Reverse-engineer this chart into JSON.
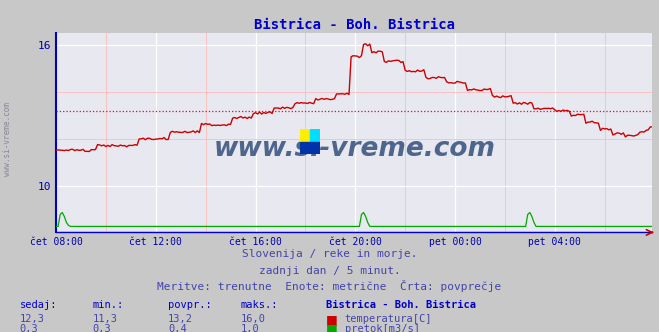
{
  "title": "Bistrica - Boh. Bistrica",
  "title_color": "#0000cc",
  "bg_color": "#c8c8c8",
  "plot_bg_color": "#e8e8f0",
  "grid_color_major": "#ffffff",
  "grid_color_minor": "#ffbbbb",
  "xlabel_color": "#0000aa",
  "ylabel_color": "#0000aa",
  "ylim": [
    8.0,
    16.5
  ],
  "yticks": [
    10,
    16
  ],
  "xlim": [
    0,
    287
  ],
  "xtick_labels": [
    "čet 08:00",
    "čet 12:00",
    "čet 16:00",
    "čet 20:00",
    "pet 00:00",
    "pet 04:00"
  ],
  "xtick_positions": [
    0,
    48,
    96,
    144,
    192,
    240
  ],
  "temp_avg": 13.2,
  "flow_avg": 0.4,
  "footnote1": "Slovenija / reke in morje.",
  "footnote2": "zadnji dan / 5 minut.",
  "footnote3": "Meritve: trenutne  Enote: metrične  Črta: povprečje",
  "footnote_color": "#4444aa",
  "table_headers": [
    "sedaj:",
    "min.:",
    "povpr.:",
    "maks.:",
    "Bistrica - Boh. Bistrica"
  ],
  "table_row1": [
    "12,3",
    "11,3",
    "13,2",
    "16,0",
    "temperatura[C]"
  ],
  "table_row2": [
    "0,3",
    "0,3",
    "0,4",
    "1,0",
    "pretok[m3/s]"
  ],
  "table_color": "#4444aa",
  "table_bold_color": "#0000cc",
  "temp_color": "#cc0000",
  "flow_color": "#00aa00",
  "level_color": "#0000cc",
  "watermark": "www.si-vreme.com",
  "watermark_color": "#1a3a6a",
  "spine_color": "#0000aa"
}
